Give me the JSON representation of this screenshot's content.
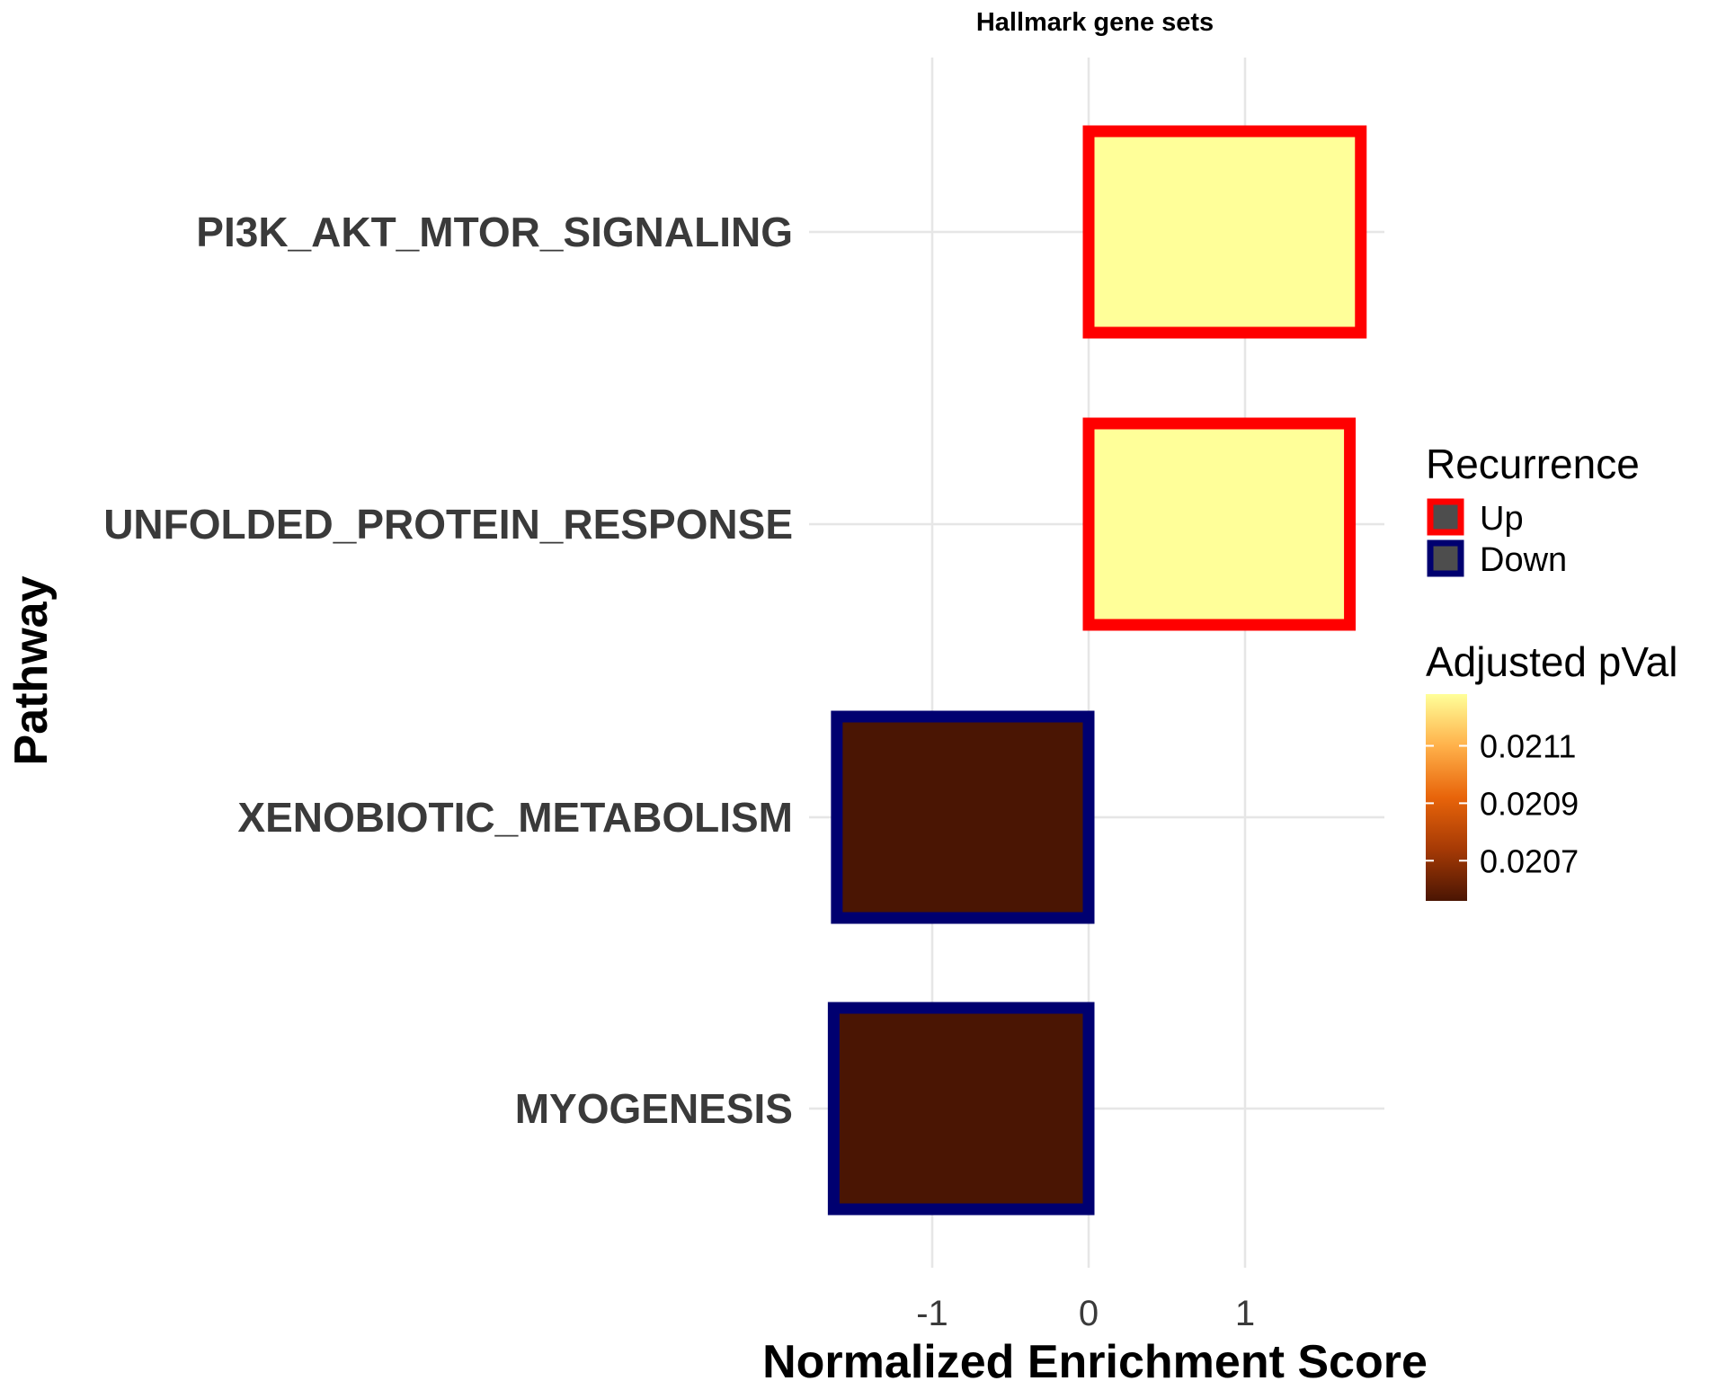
{
  "chart_data": {
    "type": "bar",
    "orientation": "horizontal",
    "title": "Hallmark gene sets",
    "xlabel": "Normalized Enrichment Score",
    "ylabel": "Pathway",
    "xlim": [
      -2.05,
      2.05
    ],
    "xticks": [
      -1,
      0,
      1
    ],
    "xtick_labels": [
      "-1",
      "0",
      "1"
    ],
    "grid": true,
    "categories": [
      "PI3K_AKT_MTOR_SIGNALING",
      "UNFOLDED_PROTEIN_RESPONSE",
      "XENOBIOTIC_METABOLISM",
      "MYOGENESIS"
    ],
    "values": [
      1.74,
      1.67,
      -1.61,
      -1.63
    ],
    "recurrence": [
      "Up",
      "Up",
      "Down",
      "Down"
    ],
    "adjusted_pval": [
      0.02128,
      0.02128,
      0.02056,
      0.02056
    ],
    "fill_colors": [
      "#ffff99",
      "#ffff99",
      "#4a1503",
      "#4a1503"
    ],
    "legend": {
      "position": "right",
      "recurrence": {
        "title": "Recurrence",
        "items": [
          {
            "label": "Up",
            "color": "#ff0000"
          },
          {
            "label": "Down",
            "color": "#000070"
          }
        ]
      },
      "pval": {
        "title": "Adjusted pVal",
        "range": [
          0.02056,
          0.02128
        ],
        "ticks": [
          0.0211,
          0.0209,
          0.0207
        ],
        "tick_labels": [
          "0.0211",
          "0.0209",
          "0.0207"
        ],
        "gradient": [
          "#4a1503",
          "#a63a05",
          "#e8640a",
          "#ffb14a",
          "#ffff99"
        ]
      }
    }
  }
}
